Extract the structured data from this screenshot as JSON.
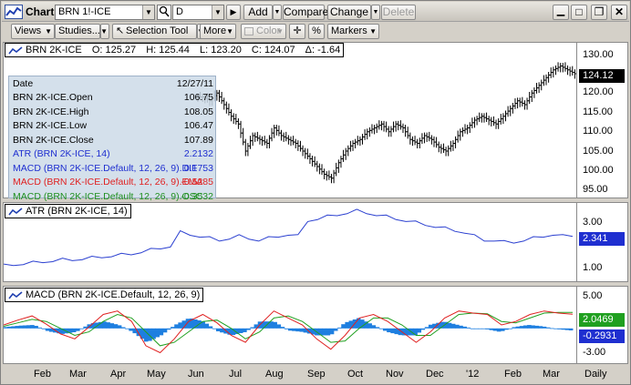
{
  "toolbar": {
    "title": "Chart",
    "symbol": "BRN 1!-ICE",
    "interval": "D",
    "add": "Add",
    "compare": "Compare",
    "change": "Change",
    "delete": "Delete"
  },
  "toolbar2": {
    "views": "Views",
    "studies": "Studies...",
    "selection_tool": "Selection Tool",
    "more": "More",
    "color": "Color",
    "percent": "%",
    "markers": "Markers"
  },
  "price_legend": {
    "name": "BRN 2K-ICE",
    "open": "O: 125.27",
    "high": "H: 125.44",
    "low": "L: 123.20",
    "close": "C: 124.07",
    "delta": "Δ: -1.64"
  },
  "data_window": {
    "date_label": "Date",
    "date_value": "12/27/11",
    "rows": [
      {
        "k": "BRN 2K-ICE.Open",
        "v": "106.75",
        "color": "#000000"
      },
      {
        "k": "BRN 2K-ICE.High",
        "v": "108.05",
        "color": "#000000"
      },
      {
        "k": "BRN 2K-ICE.Low",
        "v": "106.47",
        "color": "#000000"
      },
      {
        "k": "BRN 2K-ICE.Close",
        "v": "107.89",
        "color": "#000000"
      },
      {
        "k": "ATR (BRN 2K-ICE, 14)",
        "v": "2.2132",
        "color": "#1f2fd0"
      },
      {
        "k": "MACD (BRN 2K-ICE.Default, 12, 26, 9).DIF",
        "v": "0.1753",
        "color": "#1f2fd0"
      },
      {
        "k": "MACD (BRN 2K-ICE.Default, 12, 26, 9).EMA",
        "v": "-0.5285",
        "color": "#e02020"
      },
      {
        "k": "MACD (BRN 2K-ICE.Default, 12, 26, 9).OSC",
        "v": "-0.3532",
        "color": "#209020"
      }
    ]
  },
  "atr_legend": "ATR (BRN 2K-ICE, 14)",
  "macd_legend": "MACD (BRN 2K-ICE.Default, 12, 26, 9)",
  "price_axis": {
    "ticks": [
      "130.00",
      "120.00",
      "115.00",
      "110.00",
      "105.00",
      "100.00",
      "95.00"
    ],
    "last": "124.12"
  },
  "atr_axis": {
    "ticks": [
      "3.00",
      "1.00"
    ],
    "last": "2.341"
  },
  "macd_axis": {
    "ticks": [
      "5.00",
      "-3.00"
    ],
    "last_dif": "2.0469",
    "last_osc": "-0.2931"
  },
  "x_axis": [
    "Feb",
    "Mar",
    "Apr",
    "May",
    "Jun",
    "Jul",
    "Aug",
    "Sep",
    "Oct",
    "Nov",
    "Dec",
    "'12",
    "Feb",
    "Mar",
    "Daily"
  ],
  "colors": {
    "dif": "#1f2fd0",
    "ema": "#e02020",
    "osc_line": "#20a020",
    "hist": "#1e7fe0",
    "price": "#000000",
    "atr": "#2a3fd0"
  },
  "chart_data": [
    {
      "type": "line",
      "title": "BRN 2K-ICE",
      "description_series": "close",
      "y": [
        null,
        null,
        null,
        null,
        null,
        null,
        null,
        null,
        null,
        null,
        null,
        null,
        null,
        null,
        null,
        null,
        null,
        null,
        null,
        null,
        null,
        null,
        null,
        null,
        null,
        null,
        null,
        118,
        117,
        119,
        116,
        113,
        111,
        104,
        108,
        107,
        106,
        110,
        108,
        107,
        106,
        104,
        102,
        100,
        98,
        97,
        101,
        104,
        106,
        107,
        109,
        110,
        111,
        109,
        111,
        110,
        107,
        106,
        108,
        107,
        105,
        104,
        106,
        109,
        110,
        112,
        113,
        112,
        111,
        113,
        115,
        117,
        116,
        119,
        121,
        123,
        125,
        126,
        125,
        124
      ],
      "ylim": [
        92,
        132
      ]
    },
    {
      "type": "line",
      "title": "ATR (BRN 2K-ICE, 14)",
      "y": [
        0.8,
        0.85,
        0.9,
        0.95,
        1.0,
        1.05,
        1.1,
        1.1,
        1.15,
        1.2,
        1.25,
        1.3,
        1.35,
        1.4,
        1.5,
        1.6,
        1.7,
        1.8,
        2.5,
        2.4,
        2.3,
        2.2,
        2.1,
        2.2,
        2.3,
        2.2,
        2.1,
        2.2,
        2.3,
        2.4,
        2.3,
        3.1,
        3.2,
        3.3,
        3.4,
        3.5,
        3.6,
        3.5,
        3.4,
        3.3,
        3.2,
        3.1,
        3.0,
        2.9,
        2.8,
        2.7,
        2.6,
        2.5,
        2.3,
        2.1,
        2.1,
        2.0,
        2.0,
        2.1,
        2.2,
        2.3,
        2.4,
        2.3,
        2.34
      ],
      "ylim": [
        0,
        4
      ]
    },
    {
      "type": "line",
      "title": "MACD (BRN 2K-ICE.Default, 12, 26, 9)",
      "series": [
        {
          "name": "DIF",
          "values": [
            0.5,
            1.2,
            1.8,
            0.6,
            -0.8,
            -1.5,
            0.2,
            2.0,
            2.5,
            1.0,
            -2.5,
            -3.5,
            -1.5,
            1.0,
            2.0,
            0.8,
            -1.0,
            -2.0,
            0.5,
            2.5,
            1.5,
            0.5,
            -1.5,
            -3.0,
            -1.0,
            1.5,
            2.0,
            1.0,
            -0.5,
            -2.0,
            -0.5,
            1.5,
            2.5,
            2.2,
            2.0,
            0.5,
            1.0,
            2.0,
            2.5,
            2.2,
            2.05
          ]
        },
        {
          "name": "EMA",
          "values": [
            0.3,
            0.8,
            1.3,
            1.0,
            0.0,
            -1.0,
            -0.5,
            1.0,
            2.0,
            1.5,
            -0.5,
            -2.5,
            -2.0,
            -0.5,
            1.0,
            1.2,
            0.0,
            -1.5,
            -0.5,
            1.5,
            1.8,
            1.0,
            -0.5,
            -2.0,
            -1.8,
            0.0,
            1.5,
            1.5,
            0.5,
            -1.0,
            -1.0,
            0.5,
            2.0,
            2.2,
            2.1,
            1.0,
            0.8,
            1.5,
            2.2,
            2.3,
            2.3
          ]
        },
        {
          "name": "OSC",
          "values": [
            0.2,
            0.4,
            0.5,
            -0.4,
            -0.8,
            -0.5,
            0.7,
            1.0,
            0.5,
            -0.5,
            -2.0,
            -1.0,
            0.5,
            1.5,
            1.0,
            -0.4,
            -1.0,
            -0.5,
            1.0,
            1.0,
            -0.3,
            -0.5,
            -1.0,
            -1.0,
            0.8,
            1.5,
            0.5,
            -0.5,
            -1.0,
            -1.0,
            0.5,
            1.0,
            0.5,
            0.0,
            -0.1,
            -0.5,
            0.2,
            0.5,
            0.3,
            -0.1,
            -0.29
          ]
        }
      ],
      "ylim": [
        -5,
        6
      ]
    }
  ]
}
